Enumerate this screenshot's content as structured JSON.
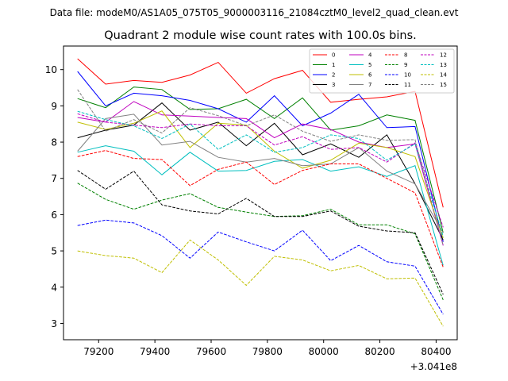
{
  "chart_data": {
    "type": "line",
    "suptitle": "Data file: modeM0/AS1A05_075T05_9000003116_21084cztM0_level2_quad_clean.evt",
    "title": "Quadrant 2 module wise count rates with 100.0s bins.",
    "xlabel": "",
    "ylabel": "",
    "x_offset_label": "+3.041e8",
    "x_offset": 304100000,
    "x": [
      79125,
      79225,
      79325,
      79425,
      79525,
      79625,
      79725,
      79825,
      79925,
      80025,
      80125,
      80225,
      80325,
      80425
    ],
    "xlim": [
      79075,
      80475
    ],
    "ylim": [
      2.55,
      10.65
    ],
    "xticks": [
      79200,
      79400,
      79600,
      79800,
      80000,
      80200,
      80400
    ],
    "yticks": [
      3,
      4,
      5,
      6,
      7,
      8,
      9,
      10
    ],
    "legend_position": "top-right",
    "series": [
      {
        "name": "0",
        "color": "#ff0000",
        "dash": "solid",
        "values": [
          10.3,
          9.6,
          9.7,
          9.65,
          9.85,
          10.2,
          9.35,
          9.75,
          9.98,
          9.1,
          9.18,
          9.25,
          9.4,
          6.2
        ]
      },
      {
        "name": "1",
        "color": "#008000",
        "dash": "solid",
        "values": [
          9.2,
          8.95,
          9.52,
          9.45,
          8.9,
          8.92,
          9.18,
          8.65,
          9.22,
          8.33,
          8.45,
          8.75,
          8.6,
          5.5
        ]
      },
      {
        "name": "2",
        "color": "#0000ff",
        "dash": "solid",
        "values": [
          9.95,
          9.0,
          9.35,
          9.28,
          9.15,
          8.92,
          8.55,
          9.28,
          8.45,
          8.8,
          9.32,
          8.4,
          8.43,
          5.25
        ]
      },
      {
        "name": "3",
        "color": "#000000",
        "dash": "solid",
        "values": [
          8.12,
          8.33,
          8.47,
          9.08,
          8.33,
          8.55,
          7.9,
          8.52,
          7.65,
          7.95,
          7.58,
          8.2,
          6.85,
          5.3
        ]
      },
      {
        "name": "4",
        "color": "#bf00bf",
        "dash": "solid",
        "values": [
          8.68,
          8.55,
          9.12,
          8.75,
          8.72,
          8.68,
          8.65,
          8.12,
          8.5,
          8.35,
          8.0,
          7.85,
          7.95,
          5.15
        ]
      },
      {
        "name": "5",
        "color": "#00bfbf",
        "dash": "solid",
        "values": [
          7.72,
          7.9,
          7.75,
          7.1,
          7.72,
          7.2,
          7.22,
          7.47,
          7.52,
          7.2,
          7.32,
          7.05,
          7.35,
          4.6
        ]
      },
      {
        "name": "6",
        "color": "#bfbf00",
        "dash": "solid",
        "values": [
          8.55,
          8.35,
          8.52,
          8.86,
          7.85,
          8.52,
          8.47,
          7.75,
          7.28,
          7.5,
          7.97,
          7.85,
          7.6,
          5.35
        ]
      },
      {
        "name": "7",
        "color": "#808080",
        "dash": "solid",
        "values": [
          7.75,
          8.65,
          8.77,
          7.92,
          8.02,
          7.58,
          7.45,
          7.55,
          7.35,
          7.4,
          7.85,
          7.2,
          6.85,
          5.5
        ]
      },
      {
        "name": "8",
        "color": "#ff0000",
        "dash": "dashed",
        "values": [
          7.6,
          7.77,
          7.55,
          7.52,
          6.8,
          7.25,
          7.45,
          6.83,
          7.22,
          7.4,
          7.4,
          7.0,
          6.6,
          4.55
        ]
      },
      {
        "name": "9",
        "color": "#008000",
        "dash": "dashed",
        "values": [
          6.87,
          6.42,
          6.15,
          6.4,
          6.58,
          6.2,
          6.07,
          5.95,
          5.97,
          6.15,
          5.72,
          5.72,
          5.47,
          3.65
        ]
      },
      {
        "name": "10",
        "color": "#0000ff",
        "dash": "dashed",
        "values": [
          5.7,
          5.85,
          5.77,
          5.42,
          4.8,
          5.52,
          5.25,
          5.0,
          5.57,
          4.73,
          5.15,
          4.7,
          4.58,
          3.25
        ]
      },
      {
        "name": "11",
        "color": "#000000",
        "dash": "dashed",
        "values": [
          7.22,
          6.7,
          7.2,
          6.27,
          6.1,
          6.02,
          6.45,
          5.95,
          5.95,
          6.1,
          5.68,
          5.55,
          5.5,
          3.8
        ]
      },
      {
        "name": "12",
        "color": "#bf00bf",
        "dash": "dashed",
        "values": [
          8.78,
          8.55,
          8.47,
          8.4,
          8.5,
          8.45,
          8.45,
          7.92,
          8.15,
          7.8,
          7.85,
          7.45,
          7.98,
          5.65
        ]
      },
      {
        "name": "13",
        "color": "#00bfbf",
        "dash": "dashed",
        "values": [
          8.85,
          8.62,
          8.45,
          8.1,
          8.5,
          7.8,
          8.2,
          7.72,
          7.85,
          8.2,
          8.1,
          7.5,
          7.95,
          5.4
        ]
      },
      {
        "name": "14",
        "color": "#bfbf00",
        "dash": "dashed",
        "values": [
          5.0,
          4.87,
          4.8,
          4.4,
          5.3,
          4.75,
          4.05,
          4.85,
          4.75,
          4.45,
          4.6,
          4.23,
          4.25,
          2.92
        ]
      },
      {
        "name": "15",
        "color": "#808080",
        "dash": "dashed",
        "values": [
          9.45,
          8.3,
          8.62,
          8.25,
          8.95,
          8.73,
          8.45,
          8.75,
          8.3,
          8.02,
          8.2,
          8.05,
          8.07,
          5.15
        ]
      }
    ]
  }
}
